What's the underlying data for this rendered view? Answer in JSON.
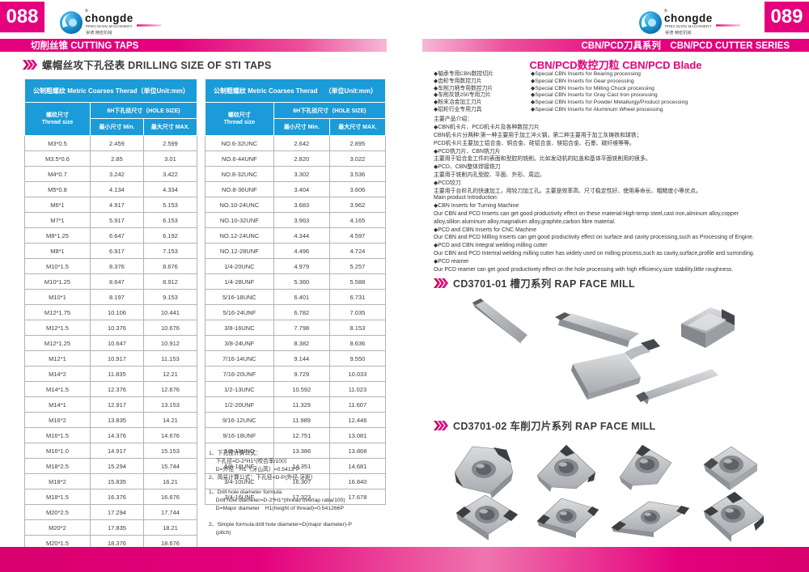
{
  "brand": {
    "name": "chongde",
    "sub": "PRECISION MACHINERY",
    "zh": "崇德 精密机械",
    "reg": "®"
  },
  "left_page": {
    "page_number": "088",
    "banner": "切削丝锥 CUTTING TAPS",
    "section_title": "螺帽丝攻下孔径表 DRILLING SIZE OF STI TAPS",
    "notes_zh": [
      "1、下孔径计算公式：",
      "　  下孔径=D-2*H1*(咬合率/100）",
      "　  D=外径　H1（牙山高）=0.5413*P",
      "2、简易计算公式：下孔径=D-P(外径-牙距）"
    ],
    "notes_en": [
      "1、Drill hole diameter formula:",
      "　  Drill hole diameter=D-2*H1*(thread overlap ratia/100)",
      "　  D=Major diameter　H1(height of thread)=0.541266P",
      "",
      "2、Simple formula:drill hole diameter=D(major diameter)-P",
      "　  (pitch)"
    ]
  },
  "tables": [
    {
      "title": "公制粗螺纹  Metric Coarses Therad",
      "unit": "（单位Unit:mm）",
      "col_thread_zh": "螺纹尺寸",
      "col_thread_en": "Thread size",
      "col_hole": "6H下孔径尺寸（HOLE SIZE)",
      "col_min": "最小尺寸  Min.",
      "col_max": "最大尺寸  MAX.",
      "rows": [
        [
          "M3*0.5",
          "2.459",
          "2.599"
        ],
        [
          "M3.5*0.6",
          "2.85",
          "3.01"
        ],
        [
          "M4*0.7",
          "3.242",
          "3.422"
        ],
        [
          "M5*0.8",
          "4.134",
          "4.334"
        ],
        [
          "M6*1",
          "4.917",
          "5.153"
        ],
        [
          "M7*1",
          "5.917",
          "6.153"
        ],
        [
          "M8*1.25",
          "6.647",
          "6.192"
        ],
        [
          "M8*1",
          "6.917",
          "7.153"
        ],
        [
          "M10*1.5",
          "8.376",
          "8.676"
        ],
        [
          "M10*1.25",
          "8.647",
          "8.912"
        ],
        [
          "M10*1",
          "8.197",
          "9.153"
        ],
        [
          "M12*1.75",
          "10.106",
          "10.441"
        ],
        [
          "M12*1.5",
          "10.376",
          "10.676"
        ],
        [
          "M12*1.25",
          "10.647",
          "10.912"
        ],
        [
          "M12*1",
          "10.917",
          "11.153"
        ],
        [
          "M14*2",
          "11.835",
          "12.21"
        ],
        [
          "M14*1.5",
          "12.376",
          "12.676"
        ],
        [
          "M14*1",
          "12.917",
          "13.153"
        ],
        [
          "M16*2",
          "13.835",
          "14.21"
        ],
        [
          "M16*1.5",
          "14.376",
          "14.676"
        ],
        [
          "M16*1.0",
          "14.917",
          "15.153"
        ],
        [
          "M18*2.5",
          "15.294",
          "15.744"
        ],
        [
          "M18*2",
          "15.835",
          "16.21"
        ],
        [
          "M18*1.5",
          "16.376",
          "16.676"
        ],
        [
          "M20*2.5",
          "17.294",
          "17.744"
        ],
        [
          "M20*2",
          "17.835",
          "18.21"
        ],
        [
          "M20*1.5",
          "18.376",
          "18.676"
        ]
      ]
    },
    {
      "title": "公制粗螺纹  Metric Coarses Therad",
      "unit": "（单位Unit:mm）",
      "col_thread_zh": "螺纹尺寸",
      "col_thread_en": "Thread size",
      "col_hole": "6H下孔径尺寸（HOLE SIZE)",
      "col_min": "最小尺寸  Min.",
      "col_max": "最大尺寸  MAX.",
      "rows": [
        [
          "NO.6-32UNC",
          "2.642",
          "2.895"
        ],
        [
          "NO.6-44UNF",
          "2.820",
          "3.022"
        ],
        [
          "NO.8-32UNC",
          "3.302",
          "3.536"
        ],
        [
          "NO.8-36UNF",
          "3.404",
          "3.606"
        ],
        [
          "NO.10-24UNC",
          "3.683",
          "3.962"
        ],
        [
          "NO.10-32UNF",
          "3.963",
          "4.165"
        ],
        [
          "NO.12-24UNC",
          "4.344",
          "4.597"
        ],
        [
          "NO.12-28UNF",
          "4.496",
          "4.724"
        ],
        [
          "1/4-20UNC",
          "4.979",
          "5.257"
        ],
        [
          "1/4-28UNF",
          "5.360",
          "5.588"
        ],
        [
          "5/16-18UNC",
          "6.401",
          "6.731"
        ],
        [
          "5/16-24UNF",
          "6.782",
          "7.035"
        ],
        [
          "3/8-16UNC",
          "7.798",
          "8.153"
        ],
        [
          "3/8-24UNF",
          "8.382",
          "8.636"
        ],
        [
          "7/16-14UNC",
          "9.144",
          "9.550"
        ],
        [
          "7/16-20UNF",
          "9.729",
          "10.033"
        ],
        [
          "1/2-13UNC",
          "10.592",
          "11.023"
        ],
        [
          "1/2-20UNF",
          "11.329",
          "11.607"
        ],
        [
          "9/16-12UNC",
          "11.989",
          "12.446"
        ],
        [
          "9/16-18UNF",
          "12.751",
          "13.081"
        ],
        [
          "5/8-11UNC",
          "13.386",
          "13.868"
        ],
        [
          "5/8-18UNF",
          "14.351",
          "14.681"
        ],
        [
          "3/4-10UNC",
          "16.307",
          "16.840"
        ],
        [
          "3/4-16UNF",
          "17.323",
          "17.678"
        ]
      ]
    }
  ],
  "right_page": {
    "page_number": "089",
    "banner": "CBN/PCD刀具系列　CBN/PCD CUTTER SERIES",
    "blade_title": "CBN/PCD数控刀粒 CBN/PCD Blade",
    "features_zh": [
      "◆轴承专用CBN数控切片",
      "◆齿轮专用数控刀片",
      "◆车削刀柄专用数控刀片",
      "◆车削灰铁250专用刀片",
      "◆粉末冶金加工刀片",
      "◆铝轮行业专用刀具"
    ],
    "features_en": [
      "◆Special CBN Inserts for Bearing processing",
      "◆Special CBN Inserts for Gear processing",
      "◆Special CBN Inserts for Milling Chuck processing",
      "◆Special CBN Inserts for Gray Cast Iron processing",
      "◆Special CBN Inserts for Powder Metallurgy/Product processing",
      "◆Special CBN Inserts for Aluminum Wheel processing"
    ],
    "intro_zh": [
      "主要产品介绍：",
      "◆CBN机卡片、PCD机卡片及各种数控刀片",
      "CBN机卡片分两种:第一种主要用于加工淬火钢，第二种主要用于加工灰铸铁和球铁；",
      "PCD机卡片主要加工铝合金、铜合金、硅铝合金、镁铝合金、石墨、碳纤维等等。",
      "◆PCD铣刀片、CBN铣刀片",
      "主要用于铝合金工件的表面和型腔的铣削。比如发动机的缸盖和基体平面铣削用的很多。",
      "◆PCD、CBN整体焊接铣刀",
      "主要用于铣削内孔型腔、平面、外形、周边。",
      "◆PCD铰刀",
      "主要用于台阶孔的快速加工，用铰刀加工孔。主要是效率高、尺寸稳定性好、使用寿命长、粗糙度小等优点。"
    ],
    "intro_en": [
      "Main product Introduction:",
      "◆CBN Inserts for Turning Machine",
      "Our CBN and PCD Inserts can get good productivity effect on these material:High-temp steel,cast iron,alminum alloy,copper",
      "alloy,sililon aluminum alloy,magnalium alloy,graphite,carbon fibre material.",
      "◆PCD and CBN Inserts for CNC Machine",
      "Our CBN and PCD Milling Inserts can get good productivity effect on surface and cavity processing,such as Processing of Engine.",
      "◆PCD and CBN Integral welding milling cutter",
      "Our CBN and PCD Intertral welding milling cutter has widely used on milling process,such as cavity,surface,profile and surronding.",
      "◆PCD reamer",
      "Our PCD reamer can get good productivety effect on the hole processing with high efficiency,size stability,little roughness."
    ],
    "section1_title": "CD3701-01  槽刀系列  RAP FACE MILL",
    "section2_title": "CD3701-02  车削刀片系列  RAP FACE MILL"
  },
  "colors": {
    "accent": "#e5007d",
    "table_header_blue": "#1b9cd8",
    "footer_pink": "#e4007c"
  }
}
